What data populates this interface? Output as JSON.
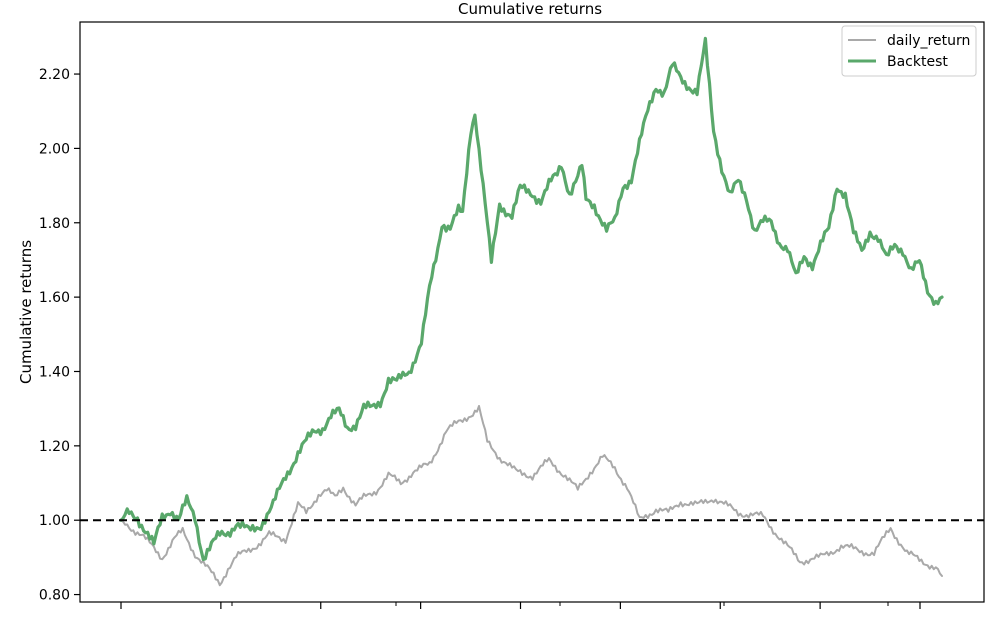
{
  "chart_data": {
    "type": "line",
    "title": "Cumulative returns",
    "ylabel": "Cumulative returns",
    "xlabel": "",
    "ylim": [
      0.78,
      2.34
    ],
    "yticks": [
      0.8,
      1.0,
      1.2,
      1.4,
      1.6,
      1.8,
      2.0,
      2.2
    ],
    "ytick_labels": [
      "0.80",
      "1.00",
      "1.20",
      "1.40",
      "1.60",
      "1.80",
      "2.00",
      "2.20"
    ],
    "x_major_tick_count": 9,
    "x_minor_tick_count": 5,
    "baseline": {
      "value": 1.0,
      "style": "dashed",
      "color": "#000000"
    },
    "legend": {
      "position": "top-right"
    },
    "n_points": 400,
    "series": [
      {
        "name": "daily_return",
        "color": "#a9a9a9",
        "x": [
          0,
          10,
          20,
          26,
          30,
          36,
          42,
          48,
          52,
          56,
          62,
          68,
          72,
          80,
          86,
          90,
          96,
          100,
          104,
          108,
          114,
          118,
          124,
          130,
          136,
          142,
          150,
          158,
          166,
          174,
          178,
          184,
          192,
          200,
          208,
          216,
          222,
          228,
          234,
          240,
          246,
          252,
          260,
          266,
          272,
          280,
          288,
          300,
          312,
          322,
          330,
          340,
          350,
          358,
          366,
          374,
          382,
          390,
          396,
          399
        ],
        "values": [
          1.0,
          0.96,
          0.9,
          0.95,
          0.97,
          0.91,
          0.87,
          0.83,
          0.87,
          0.9,
          0.92,
          0.94,
          0.96,
          0.95,
          1.04,
          1.02,
          1.07,
          1.08,
          1.06,
          1.09,
          1.04,
          1.06,
          1.08,
          1.12,
          1.1,
          1.13,
          1.15,
          1.24,
          1.27,
          1.3,
          1.21,
          1.17,
          1.13,
          1.12,
          1.16,
          1.12,
          1.08,
          1.13,
          1.17,
          1.14,
          1.09,
          1.0,
          1.03,
          1.02,
          1.05,
          1.04,
          1.06,
          1.02,
          1.01,
          0.94,
          0.89,
          0.9,
          0.93,
          0.92,
          0.91,
          0.98,
          0.91,
          0.89,
          0.87,
          0.85
        ]
      },
      {
        "name": "Backtest",
        "color": "#5aa86b",
        "x": [
          0,
          4,
          8,
          12,
          16,
          20,
          24,
          28,
          32,
          36,
          40,
          44,
          48,
          52,
          56,
          62,
          68,
          74,
          80,
          86,
          90,
          94,
          98,
          102,
          106,
          110,
          114,
          118,
          122,
          126,
          130,
          134,
          140,
          146,
          150,
          154,
          156,
          160,
          164,
          166,
          170,
          172,
          176,
          180,
          184,
          190,
          194,
          200,
          204,
          208,
          212,
          214,
          218,
          222,
          224,
          226,
          230,
          236,
          240,
          244,
          248,
          252,
          256,
          260,
          264,
          268,
          272,
          276,
          280,
          284,
          288,
          292,
          296,
          300,
          304,
          308,
          312,
          316,
          320,
          324,
          328,
          332,
          336,
          340,
          344,
          348,
          352,
          356,
          360,
          364,
          368,
          372,
          376,
          380,
          384,
          388,
          392,
          396,
          399
        ],
        "values": [
          1.0,
          1.02,
          1.01,
          0.97,
          0.93,
          1.01,
          1.03,
          1.0,
          1.05,
          1.01,
          0.9,
          0.93,
          0.96,
          0.97,
          0.99,
          0.97,
          0.99,
          1.04,
          1.12,
          1.18,
          1.21,
          1.24,
          1.25,
          1.28,
          1.29,
          1.25,
          1.26,
          1.3,
          1.3,
          1.32,
          1.38,
          1.37,
          1.4,
          1.48,
          1.62,
          1.73,
          1.8,
          1.79,
          1.83,
          1.82,
          2.05,
          2.1,
          1.9,
          1.69,
          1.85,
          1.82,
          1.89,
          1.88,
          1.86,
          1.9,
          1.93,
          1.96,
          1.88,
          1.92,
          1.95,
          1.86,
          1.85,
          1.78,
          1.8,
          1.9,
          1.92,
          2.01,
          2.1,
          2.17,
          2.15,
          2.22,
          2.19,
          2.17,
          2.15,
          2.28,
          2.05,
          1.95,
          1.87,
          1.91,
          1.87,
          1.78,
          1.8,
          1.8,
          1.75,
          1.73,
          1.65,
          1.71,
          1.69,
          1.74,
          1.78,
          1.9,
          1.88,
          1.77,
          1.72,
          1.78,
          1.76,
          1.7,
          1.74,
          1.73,
          1.67,
          1.69,
          1.62,
          1.59,
          1.6
        ]
      }
    ]
  }
}
